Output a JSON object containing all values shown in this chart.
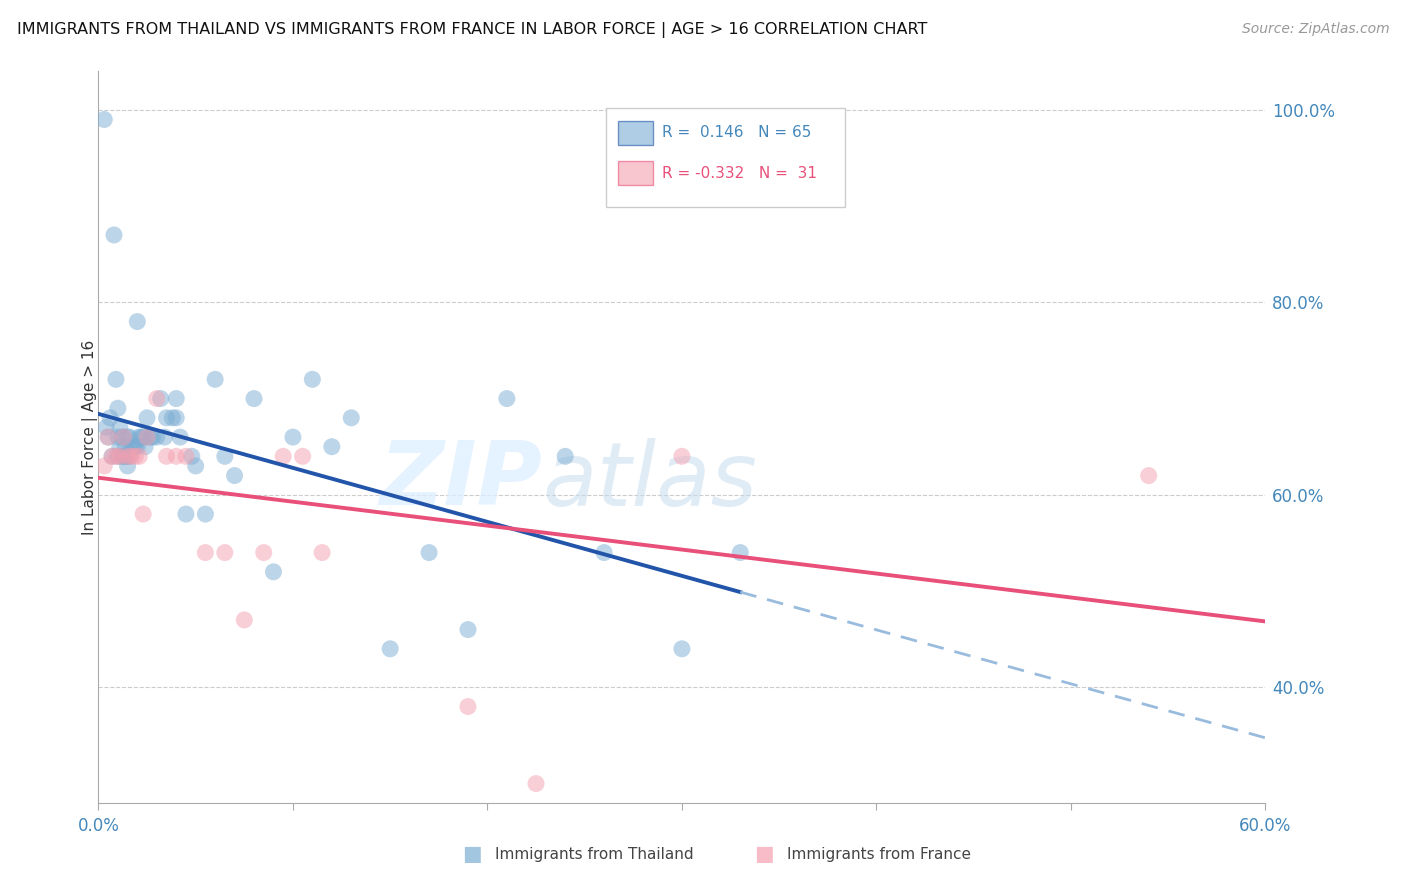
{
  "title": "IMMIGRANTS FROM THAILAND VS IMMIGRANTS FROM FRANCE IN LABOR FORCE | AGE > 16 CORRELATION CHART",
  "source": "Source: ZipAtlas.com",
  "ylabel": "In Labor Force | Age > 16",
  "xlim": [
    0.0,
    0.6
  ],
  "ylim": [
    0.28,
    1.04
  ],
  "x_ticks": [
    0.0,
    0.1,
    0.2,
    0.3,
    0.4,
    0.5,
    0.6
  ],
  "x_tick_labels": [
    "0.0%",
    "",
    "",
    "",
    "",
    "",
    "60.0%"
  ],
  "y_ticks": [
    0.4,
    0.6,
    0.8,
    1.0
  ],
  "y_tick_labels": [
    "40.0%",
    "60.0%",
    "80.0%",
    "100.0%"
  ],
  "thailand_color": "#7BADD3",
  "france_color": "#F4A0B0",
  "thailand_line_color": "#2255AA",
  "france_line_color": "#E8507A",
  "thailand_dashed_color": "#99BBDD",
  "thailand_x": [
    0.003,
    0.004,
    0.005,
    0.006,
    0.007,
    0.008,
    0.009,
    0.01,
    0.01,
    0.011,
    0.011,
    0.012,
    0.012,
    0.013,
    0.013,
    0.014,
    0.014,
    0.015,
    0.015,
    0.016,
    0.016,
    0.017,
    0.018,
    0.019,
    0.02,
    0.021,
    0.022,
    0.023,
    0.024,
    0.025,
    0.027,
    0.028,
    0.03,
    0.032,
    0.034,
    0.035,
    0.038,
    0.04,
    0.042,
    0.045,
    0.048,
    0.05,
    0.055,
    0.06,
    0.065,
    0.07,
    0.08,
    0.09,
    0.1,
    0.11,
    0.12,
    0.13,
    0.15,
    0.17,
    0.19,
    0.21,
    0.24,
    0.26,
    0.3,
    0.33,
    0.01,
    0.015,
    0.02,
    0.025,
    0.04
  ],
  "thailand_y": [
    0.99,
    0.67,
    0.66,
    0.68,
    0.64,
    0.87,
    0.72,
    0.69,
    0.66,
    0.67,
    0.65,
    0.66,
    0.64,
    0.66,
    0.64,
    0.64,
    0.65,
    0.66,
    0.64,
    0.66,
    0.64,
    0.65,
    0.65,
    0.65,
    0.65,
    0.66,
    0.66,
    0.66,
    0.65,
    0.66,
    0.66,
    0.66,
    0.66,
    0.7,
    0.66,
    0.68,
    0.68,
    0.68,
    0.66,
    0.58,
    0.64,
    0.63,
    0.58,
    0.72,
    0.64,
    0.62,
    0.7,
    0.52,
    0.66,
    0.72,
    0.65,
    0.68,
    0.44,
    0.54,
    0.46,
    0.7,
    0.64,
    0.54,
    0.44,
    0.54,
    0.64,
    0.63,
    0.78,
    0.68,
    0.7
  ],
  "france_x": [
    0.003,
    0.005,
    0.007,
    0.009,
    0.011,
    0.013,
    0.015,
    0.017,
    0.019,
    0.021,
    0.023,
    0.025,
    0.03,
    0.035,
    0.04,
    0.045,
    0.055,
    0.065,
    0.075,
    0.085,
    0.095,
    0.105,
    0.115,
    0.19,
    0.225,
    0.3,
    0.54
  ],
  "france_y": [
    0.63,
    0.66,
    0.64,
    0.64,
    0.64,
    0.66,
    0.64,
    0.64,
    0.64,
    0.64,
    0.58,
    0.66,
    0.7,
    0.64,
    0.64,
    0.64,
    0.54,
    0.54,
    0.47,
    0.54,
    0.64,
    0.64,
    0.54,
    0.38,
    0.3,
    0.64,
    0.62
  ],
  "th_line_x_start": 0.0,
  "th_line_x_solid_end": 0.33,
  "th_line_x_dash_end": 0.6,
  "fr_line_x_start": 0.0,
  "fr_line_x_end": 0.6
}
